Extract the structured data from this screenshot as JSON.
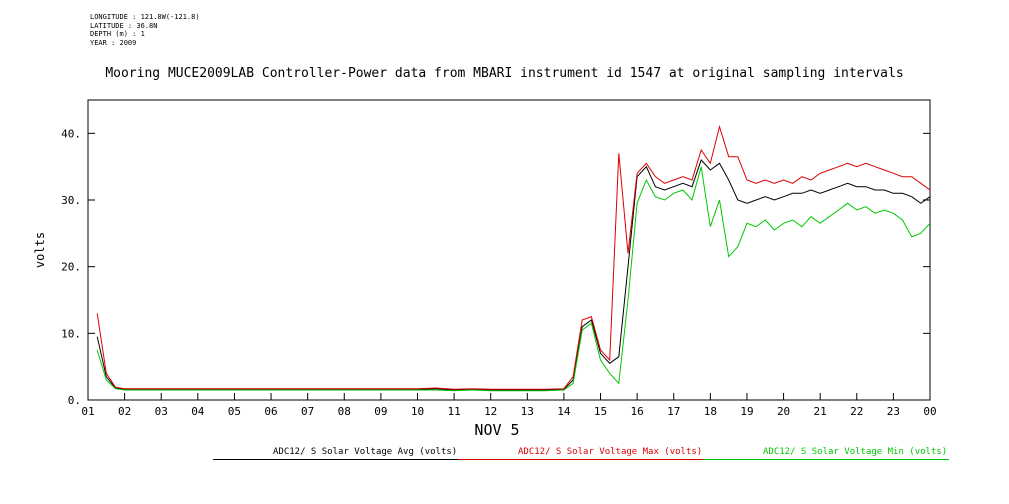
{
  "header": {
    "longitude": "LONGITUDE : 121.8W(-121.8)",
    "latitude": "LATITUDE : 36.8N",
    "depth": "DEPTH (m) : 1",
    "year": "YEAR : 2009"
  },
  "chart_data": {
    "type": "line",
    "title": "Mooring MUCE2009LAB Controller-Power data from MBARI instrument id 1547 at original sampling intervals",
    "xlabel": "NOV 5",
    "ylabel": "volts",
    "xlim": [
      1,
      24
    ],
    "ylim": [
      0,
      45
    ],
    "grid": false,
    "legend_position": "bottom",
    "y_ticks": [
      {
        "value": 0,
        "label": "0."
      },
      {
        "value": 10,
        "label": "10."
      },
      {
        "value": 20,
        "label": "20."
      },
      {
        "value": 30,
        "label": "30."
      },
      {
        "value": 40,
        "label": "40."
      }
    ],
    "x_ticks": [
      {
        "value": 1,
        "label": "01"
      },
      {
        "value": 2,
        "label": "02"
      },
      {
        "value": 3,
        "label": "03"
      },
      {
        "value": 4,
        "label": "04"
      },
      {
        "value": 5,
        "label": "05"
      },
      {
        "value": 6,
        "label": "06"
      },
      {
        "value": 7,
        "label": "07"
      },
      {
        "value": 8,
        "label": "08"
      },
      {
        "value": 9,
        "label": "09"
      },
      {
        "value": 10,
        "label": "10"
      },
      {
        "value": 11,
        "label": "11"
      },
      {
        "value": 12,
        "label": "12"
      },
      {
        "value": 13,
        "label": "13"
      },
      {
        "value": 14,
        "label": "14"
      },
      {
        "value": 15,
        "label": "15"
      },
      {
        "value": 16,
        "label": "16"
      },
      {
        "value": 17,
        "label": "17"
      },
      {
        "value": 18,
        "label": "18"
      },
      {
        "value": 19,
        "label": "19"
      },
      {
        "value": 20,
        "label": "20"
      },
      {
        "value": 21,
        "label": "21"
      },
      {
        "value": 22,
        "label": "22"
      },
      {
        "value": 23,
        "label": "23"
      },
      {
        "value": 24,
        "label": "00"
      }
    ],
    "x": [
      1.25,
      1.5,
      1.75,
      2,
      2.5,
      3,
      3.5,
      4,
      4.5,
      5,
      5.5,
      6,
      6.5,
      7,
      7.5,
      8,
      8.5,
      9,
      9.5,
      10,
      10.5,
      11,
      11.5,
      12,
      12.5,
      13,
      13.5,
      14,
      14.25,
      14.5,
      14.75,
      15,
      15.25,
      15.5,
      15.75,
      16,
      16.25,
      16.5,
      16.75,
      17,
      17.25,
      17.5,
      17.75,
      18,
      18.25,
      18.5,
      18.75,
      19,
      19.25,
      19.5,
      19.75,
      20,
      20.25,
      20.5,
      20.75,
      21,
      21.25,
      21.5,
      21.75,
      22,
      22.25,
      22.5,
      22.75,
      23,
      23.25,
      23.5,
      23.75,
      24
    ],
    "series": [
      {
        "name": "ADC12/ S Solar Voltage Avg (volts)",
        "color": "#000000",
        "values": [
          9.5,
          3.5,
          1.8,
          1.6,
          1.6,
          1.6,
          1.6,
          1.6,
          1.6,
          1.6,
          1.6,
          1.6,
          1.6,
          1.6,
          1.6,
          1.6,
          1.6,
          1.6,
          1.6,
          1.6,
          1.7,
          1.5,
          1.6,
          1.5,
          1.5,
          1.5,
          1.5,
          1.6,
          3,
          11,
          12,
          7,
          5.5,
          6.5,
          20,
          33.5,
          35,
          32,
          31.5,
          32,
          32.5,
          32,
          36,
          34.5,
          35.5,
          33,
          30,
          29.5,
          30,
          30.5,
          30,
          30.5,
          31,
          31,
          31.5,
          31,
          31.5,
          32,
          32.5,
          32,
          32,
          31.5,
          31.5,
          31,
          31,
          30.5,
          29.5,
          30.5
        ]
      },
      {
        "name": "ADC12/ S Solar Voltage Max (volts)",
        "color": "#dd0000",
        "values": [
          13,
          4,
          1.9,
          1.7,
          1.7,
          1.7,
          1.7,
          1.7,
          1.7,
          1.7,
          1.7,
          1.7,
          1.7,
          1.7,
          1.7,
          1.7,
          1.7,
          1.7,
          1.7,
          1.7,
          1.8,
          1.6,
          1.7,
          1.6,
          1.6,
          1.6,
          1.6,
          1.7,
          3.5,
          12,
          12.5,
          7.5,
          6,
          37,
          22,
          34,
          35.5,
          33.5,
          32.5,
          33,
          33.5,
          33,
          37.5,
          35.5,
          41,
          36.5,
          36.5,
          33,
          32.5,
          33,
          32.5,
          33,
          32.5,
          33.5,
          33,
          34,
          34.5,
          35,
          35.5,
          35,
          35.5,
          35,
          34.5,
          34,
          33.5,
          33.5,
          32.5,
          31.5
        ]
      },
      {
        "name": "ADC12/ S Solar Voltage Min (volts)",
        "color": "#00c800",
        "values": [
          7.5,
          3,
          1.7,
          1.5,
          1.5,
          1.5,
          1.5,
          1.5,
          1.5,
          1.5,
          1.5,
          1.5,
          1.5,
          1.5,
          1.5,
          1.5,
          1.5,
          1.5,
          1.5,
          1.5,
          1.5,
          1.4,
          1.5,
          1.4,
          1.4,
          1.4,
          1.4,
          1.5,
          2.5,
          10.5,
          11.5,
          6,
          4,
          2.5,
          15,
          29.5,
          33,
          30.5,
          30,
          31,
          31.5,
          30,
          35,
          26,
          30,
          21.5,
          23,
          26.5,
          26,
          27,
          25.5,
          26.5,
          27,
          26,
          27.5,
          26.5,
          27.5,
          28.5,
          29.5,
          28.5,
          29,
          28,
          28.5,
          28,
          27,
          24.5,
          25,
          26.5
        ]
      }
    ]
  }
}
